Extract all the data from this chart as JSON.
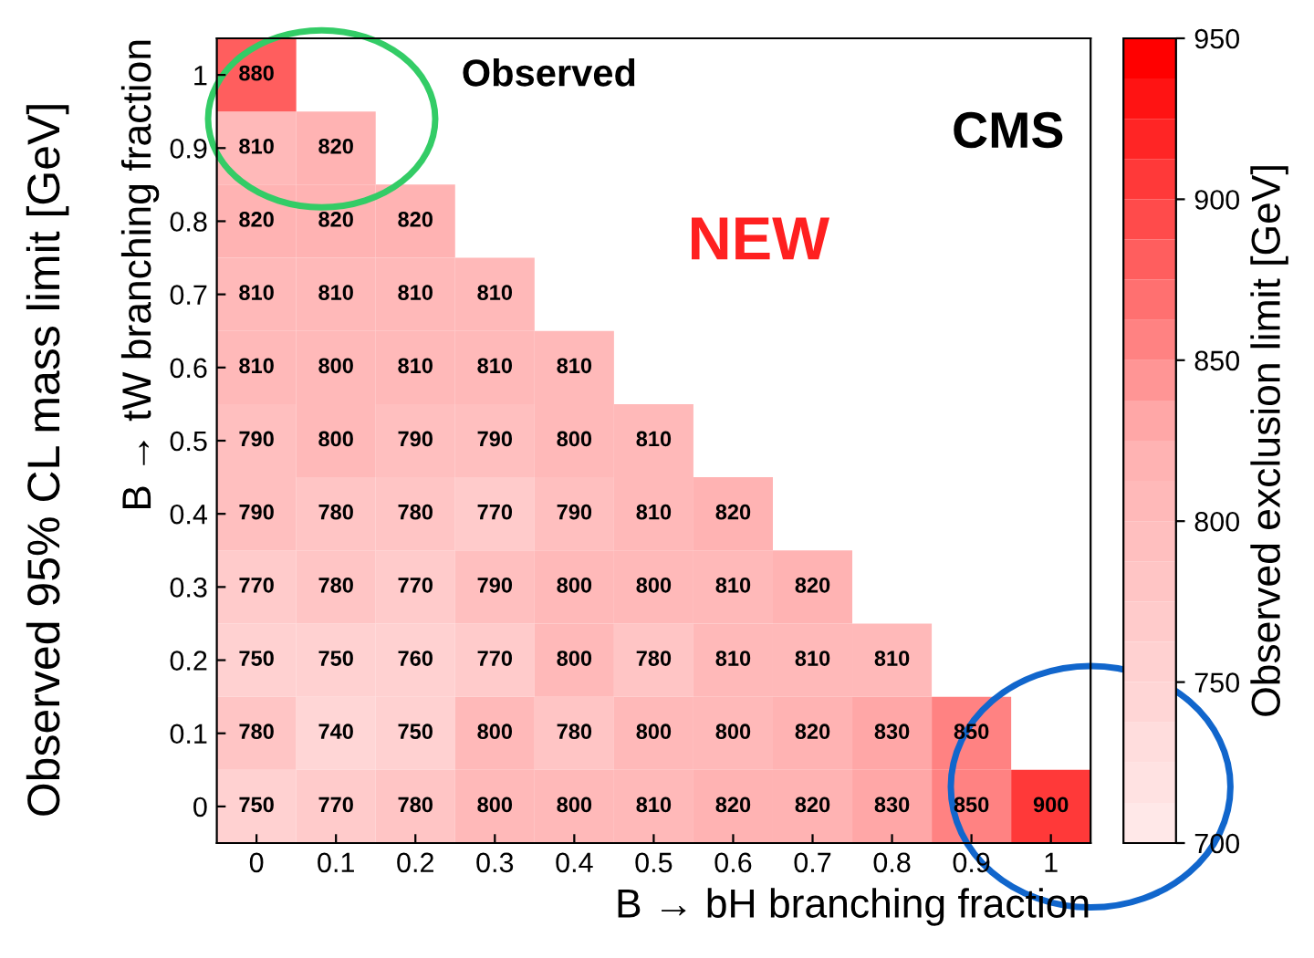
{
  "chart_data": {
    "type": "heatmap",
    "xlabel": "B → bH branching fraction",
    "ylabel": "B → tW branching fraction",
    "clabel": "Observed exclusion limit [GeV]",
    "categories": [
      "0",
      "0.1",
      "0.2",
      "0.3",
      "0.4",
      "0.5",
      "0.6",
      "0.7",
      "0.8",
      "0.9",
      "1"
    ],
    "y_categories": [
      "1",
      "0.9",
      "0.8",
      "0.7",
      "0.6",
      "0.5",
      "0.4",
      "0.3",
      "0.2",
      "0.1",
      "0"
    ],
    "cells": [
      [
        880,
        null,
        null,
        null,
        null,
        null,
        null,
        null,
        null,
        null,
        null
      ],
      [
        810,
        820,
        null,
        null,
        null,
        null,
        null,
        null,
        null,
        null,
        null
      ],
      [
        820,
        820,
        820,
        null,
        null,
        null,
        null,
        null,
        null,
        null,
        null
      ],
      [
        810,
        810,
        810,
        810,
        null,
        null,
        null,
        null,
        null,
        null,
        null
      ],
      [
        810,
        800,
        810,
        810,
        810,
        null,
        null,
        null,
        null,
        null,
        null
      ],
      [
        790,
        800,
        790,
        790,
        800,
        810,
        null,
        null,
        null,
        null,
        null
      ],
      [
        790,
        780,
        780,
        770,
        790,
        810,
        820,
        null,
        null,
        null,
        null
      ],
      [
        770,
        780,
        770,
        790,
        800,
        800,
        810,
        820,
        null,
        null,
        null
      ],
      [
        750,
        750,
        760,
        770,
        800,
        780,
        810,
        810,
        810,
        null,
        null
      ],
      [
        780,
        740,
        750,
        800,
        780,
        800,
        800,
        820,
        830,
        850,
        null
      ],
      [
        750,
        770,
        780,
        800,
        800,
        810,
        820,
        820,
        830,
        850,
        900
      ]
    ],
    "clim": [
      700,
      950
    ],
    "cticks": [
      700,
      750,
      800,
      850,
      900,
      950
    ],
    "data_labels": true,
    "annotations": [
      "Observed",
      "CMS",
      "NEW",
      "Observed 95% CL mass limit [GeV]"
    ]
  }
}
